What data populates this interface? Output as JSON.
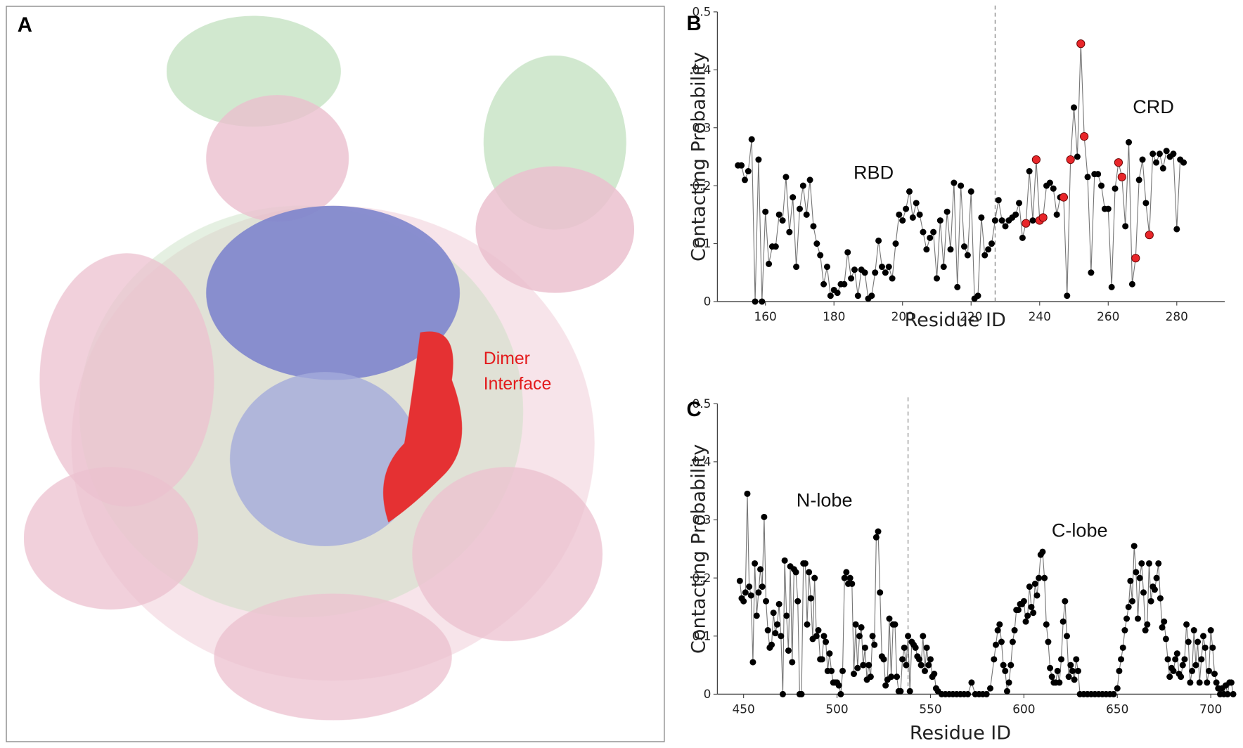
{
  "image_panel": {
    "label": "A",
    "annotation_lines": [
      "Dimer",
      "Interface"
    ]
  },
  "chart_data": [
    {
      "type": "line",
      "panel": "B",
      "xlabel": "Residue ID",
      "ylabel": "Contacting Probability",
      "xlim": [
        146,
        294
      ],
      "xticks": [
        160,
        180,
        200,
        220,
        240,
        260,
        280
      ],
      "ylim": [
        0,
        0.5
      ],
      "yticks": [
        0,
        0.1,
        0.2,
        0.3,
        0.4,
        0.5
      ],
      "divider": 227,
      "annotations": [
        "RBD",
        "CRD"
      ],
      "series": [
        {
          "color": "#000000",
          "line_color": "#777777",
          "x": [
            152,
            153,
            154,
            155,
            156,
            157,
            158,
            159,
            160,
            161,
            162,
            163,
            164,
            165,
            166,
            167,
            168,
            169,
            170,
            171,
            172,
            173,
            174,
            175,
            176,
            177,
            178,
            179,
            180,
            181,
            182,
            183,
            184,
            185,
            186,
            187,
            188,
            189,
            190,
            191,
            192,
            193,
            194,
            195,
            196,
            197,
            198,
            199,
            200,
            201,
            202,
            203,
            204,
            205,
            206,
            207,
            208,
            209,
            210,
            211,
            212,
            213,
            214,
            215,
            216,
            217,
            218,
            219,
            220,
            221,
            222,
            223,
            224,
            225,
            226,
            227,
            228,
            229,
            230,
            231,
            232,
            233,
            234,
            235,
            236,
            237,
            238,
            239,
            240,
            241,
            242,
            243,
            244,
            245,
            246,
            247,
            248,
            249,
            250,
            251,
            252,
            253,
            254,
            255,
            256,
            257,
            258,
            259,
            260,
            261,
            262,
            263,
            264,
            265,
            266,
            267,
            268,
            269,
            270,
            271,
            272,
            273,
            274,
            275,
            276,
            277,
            278,
            279,
            280,
            281,
            282
          ],
          "values": [
            0.235,
            0.235,
            0.21,
            0.225,
            0.28,
            0,
            0.245,
            0,
            0.155,
            0.065,
            0.095,
            0.095,
            0.15,
            0.14,
            0.215,
            0.12,
            0.18,
            0.06,
            0.16,
            0.2,
            0.15,
            0.21,
            0.13,
            0.1,
            0.08,
            0.03,
            0.06,
            0.01,
            0.02,
            0.015,
            0.03,
            0.03,
            0.085,
            0.04,
            0.055,
            0.01,
            0.055,
            0.05,
            0.005,
            0.01,
            0.05,
            0.105,
            0.06,
            0.05,
            0.06,
            0.04,
            0.1,
            0.15,
            0.14,
            0.16,
            0.19,
            0.145,
            0.17,
            0.15,
            0.12,
            0.09,
            0.11,
            0.12,
            0.04,
            0.14,
            0.06,
            0.155,
            0.09,
            0.205,
            0.025,
            0.2,
            0.095,
            0.08,
            0.19,
            0.005,
            0.01,
            0.145,
            0.08,
            0.09,
            0.1,
            0.14,
            0.175,
            0.14,
            0.13,
            0.14,
            0.145,
            0.15,
            0.17,
            0.11,
            0.135,
            0.225,
            0.14,
            0.245,
            0.14,
            0.145,
            0.2,
            0.205,
            0.195,
            0.15,
            0.18,
            0.18,
            0.01,
            0.245,
            0.335,
            0.25,
            0.445,
            0.285,
            0.215,
            0.05,
            0.22,
            0.22,
            0.2,
            0.16,
            0.16,
            0.025,
            0.195,
            0.24,
            0.215,
            0.13,
            0.275,
            0.03,
            0.075,
            0.21,
            0.245,
            0.17,
            0.115,
            0.255,
            0.24,
            0.255,
            0.23,
            0.26,
            0.25,
            0.255,
            0.125,
            0.245,
            0.24
          ]
        },
        {
          "color": "#e8262a",
          "markers_only": true,
          "x": [
            236,
            239,
            240,
            241,
            247,
            249,
            252,
            253,
            263,
            264,
            268,
            272
          ],
          "values": [
            0.135,
            0.245,
            0.14,
            0.145,
            0.18,
            0.245,
            0.445,
            0.285,
            0.24,
            0.215,
            0.075,
            0.115
          ]
        }
      ]
    },
    {
      "type": "line",
      "panel": "C",
      "xlabel": "Residue ID",
      "ylabel": "Contacting Probability",
      "xlim": [
        436,
        713
      ],
      "xticks": [
        450,
        500,
        550,
        600,
        650,
        700
      ],
      "ylim": [
        0,
        0.5
      ],
      "yticks": [
        0,
        0.1,
        0.2,
        0.3,
        0.4,
        0.5
      ],
      "divider": 538,
      "annotations": [
        "N-lobe",
        "C-lobe"
      ],
      "series": [
        {
          "color": "#000000",
          "line_color": "#777777",
          "x": [
            448,
            449,
            450,
            451,
            452,
            453,
            454,
            455,
            456,
            457,
            458,
            459,
            460,
            461,
            462,
            463,
            464,
            465,
            466,
            467,
            468,
            469,
            470,
            471,
            472,
            473,
            474,
            475,
            476,
            477,
            478,
            479,
            480,
            481,
            482,
            483,
            484,
            485,
            486,
            487,
            488,
            489,
            490,
            491,
            492,
            493,
            494,
            495,
            496,
            497,
            498,
            499,
            500,
            501,
            502,
            503,
            504,
            505,
            506,
            507,
            508,
            509,
            510,
            511,
            512,
            513,
            514,
            515,
            516,
            517,
            518,
            519,
            520,
            521,
            522,
            523,
            524,
            525,
            526,
            527,
            528,
            529,
            530,
            531,
            532,
            533,
            534,
            535,
            536,
            537,
            538,
            539,
            540,
            541,
            542,
            543,
            544,
            545,
            546,
            547,
            548,
            549,
            550,
            551,
            552,
            553,
            554,
            556,
            558,
            560,
            562,
            564,
            566,
            568,
            570,
            572,
            574,
            576,
            578,
            580,
            582,
            584,
            585,
            586,
            587,
            588,
            589,
            590,
            591,
            592,
            593,
            594,
            595,
            596,
            597,
            598,
            599,
            600,
            601,
            602,
            603,
            604,
            605,
            606,
            607,
            608,
            609,
            610,
            611,
            612,
            613,
            614,
            615,
            616,
            617,
            618,
            619,
            620,
            621,
            622,
            623,
            624,
            625,
            626,
            627,
            628,
            629,
            630,
            632,
            634,
            636,
            638,
            640,
            642,
            644,
            646,
            648,
            650,
            651,
            652,
            653,
            654,
            655,
            656,
            657,
            658,
            659,
            660,
            661,
            662,
            663,
            664,
            665,
            666,
            667,
            668,
            669,
            670,
            671,
            672,
            673,
            674,
            675,
            676,
            677,
            678,
            679,
            680,
            681,
            682,
            683,
            684,
            685,
            686,
            687,
            688,
            689,
            690,
            691,
            692,
            693,
            694,
            695,
            696,
            697,
            698,
            699,
            700,
            701,
            702,
            703,
            704,
            705,
            706,
            707,
            708,
            709,
            710,
            711,
            712
          ],
          "values": [
            0.195,
            0.165,
            0.16,
            0.175,
            0.345,
            0.185,
            0.17,
            0.055,
            0.225,
            0.135,
            0.175,
            0.215,
            0.185,
            0.305,
            0.16,
            0.11,
            0.08,
            0.085,
            0.14,
            0.105,
            0.12,
            0.155,
            0.1,
            0,
            0.23,
            0.135,
            0.075,
            0.22,
            0.055,
            0.215,
            0.21,
            0.16,
            0,
            0,
            0.225,
            0.225,
            0.12,
            0.21,
            0.165,
            0.095,
            0.2,
            0.1,
            0.11,
            0.06,
            0.06,
            0.1,
            0.09,
            0.04,
            0.07,
            0.04,
            0.02,
            0.02,
            0.02,
            0.015,
            0,
            0.04,
            0.2,
            0.21,
            0.19,
            0.2,
            0.19,
            0.035,
            0.12,
            0.045,
            0.1,
            0.115,
            0.05,
            0.08,
            0.025,
            0.05,
            0.03,
            0.1,
            0.085,
            0.27,
            0.28,
            0.175,
            0.065,
            0.06,
            0.015,
            0.025,
            0.13,
            0.03,
            0.12,
            0.12,
            0.03,
            0.005,
            0.005,
            0.06,
            0.08,
            0.05,
            0.1,
            0.005,
            0.09,
            0.085,
            0.08,
            0.065,
            0.06,
            0.05,
            0.1,
            0.04,
            0.08,
            0.05,
            0.06,
            0.03,
            0.035,
            0.01,
            0.005,
            0,
            0,
            0,
            0,
            0,
            0,
            0,
            0,
            0.02,
            0,
            0,
            0,
            0,
            0.01,
            0.06,
            0.085,
            0.11,
            0.12,
            0.09,
            0.05,
            0.04,
            0.005,
            0.02,
            0.05,
            0.09,
            0.11,
            0.145,
            0.145,
            0.155,
            0.155,
            0.16,
            0.125,
            0.135,
            0.185,
            0.15,
            0.14,
            0.19,
            0.17,
            0.2,
            0.24,
            0.245,
            0.2,
            0.12,
            0.09,
            0.045,
            0.03,
            0.02,
            0.02,
            0.04,
            0.02,
            0.06,
            0.125,
            0.16,
            0.1,
            0.03,
            0.05,
            0.04,
            0.025,
            0.06,
            0.04,
            0,
            0,
            0,
            0,
            0,
            0,
            0,
            0,
            0,
            0,
            0.01,
            0.04,
            0.06,
            0.08,
            0.11,
            0.13,
            0.15,
            0.195,
            0.16,
            0.255,
            0.21,
            0.13,
            0.2,
            0.225,
            0.175,
            0.11,
            0.12,
            0.225,
            0.16,
            0.185,
            0.18,
            0.2,
            0.225,
            0.165,
            0.115,
            0.125,
            0.095,
            0.06,
            0.03,
            0.045,
            0.04,
            0.06,
            0.07,
            0.035,
            0.03,
            0.05,
            0.06,
            0.12,
            0.09,
            0.02,
            0.04,
            0.11,
            0.05,
            0.09,
            0.02,
            0.06,
            0.1,
            0.08,
            0.02,
            0.04,
            0.11,
            0.08,
            0.035,
            0.02,
            0.01,
            0,
            0.01,
            0,
            0.015,
            0,
            0.02,
            0.02,
            0
          ]
        }
      ]
    }
  ]
}
